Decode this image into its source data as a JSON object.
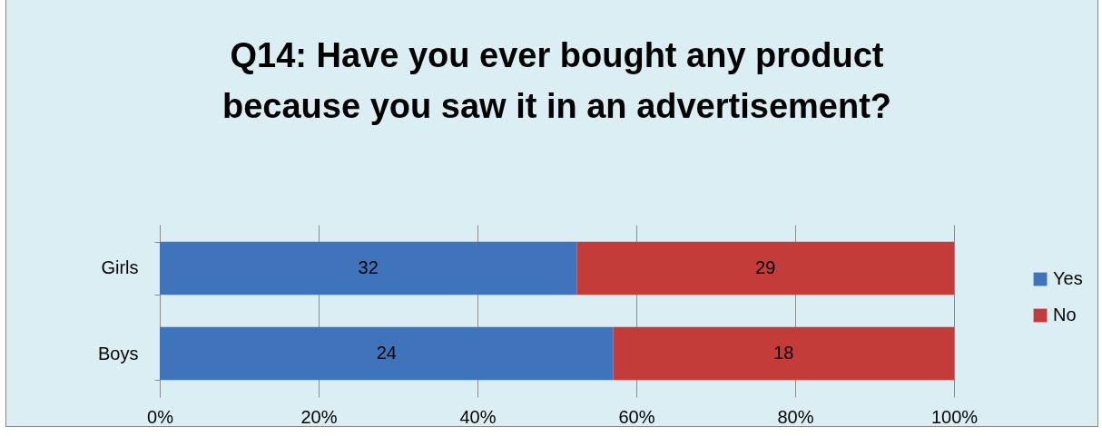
{
  "chart_data": {
    "type": "bar",
    "title": "Q14: Have you ever bought any product because you saw it in an advertisement?",
    "orientation": "horizontal",
    "stacked": true,
    "categories": [
      "Girls",
      "Boys"
    ],
    "series": [
      {
        "name": "Yes",
        "color": "#3f74bd",
        "values": [
          52.5,
          57.1
        ]
      },
      {
        "name": "No",
        "color": "#c43c3a",
        "values": [
          47.5,
          42.9
        ]
      }
    ],
    "annotations": [
      "32",
      "29",
      "24",
      "18"
    ],
    "xlim": [
      0,
      100
    ],
    "xticks": [
      {
        "value": 0,
        "label": "0%"
      },
      {
        "value": 20,
        "label": "20%"
      },
      {
        "value": 40,
        "label": "40%"
      },
      {
        "value": 60,
        "label": "60%"
      },
      {
        "value": 80,
        "label": "80%"
      },
      {
        "value": 100,
        "label": "100%"
      }
    ],
    "grid": "x",
    "legend": "right"
  }
}
